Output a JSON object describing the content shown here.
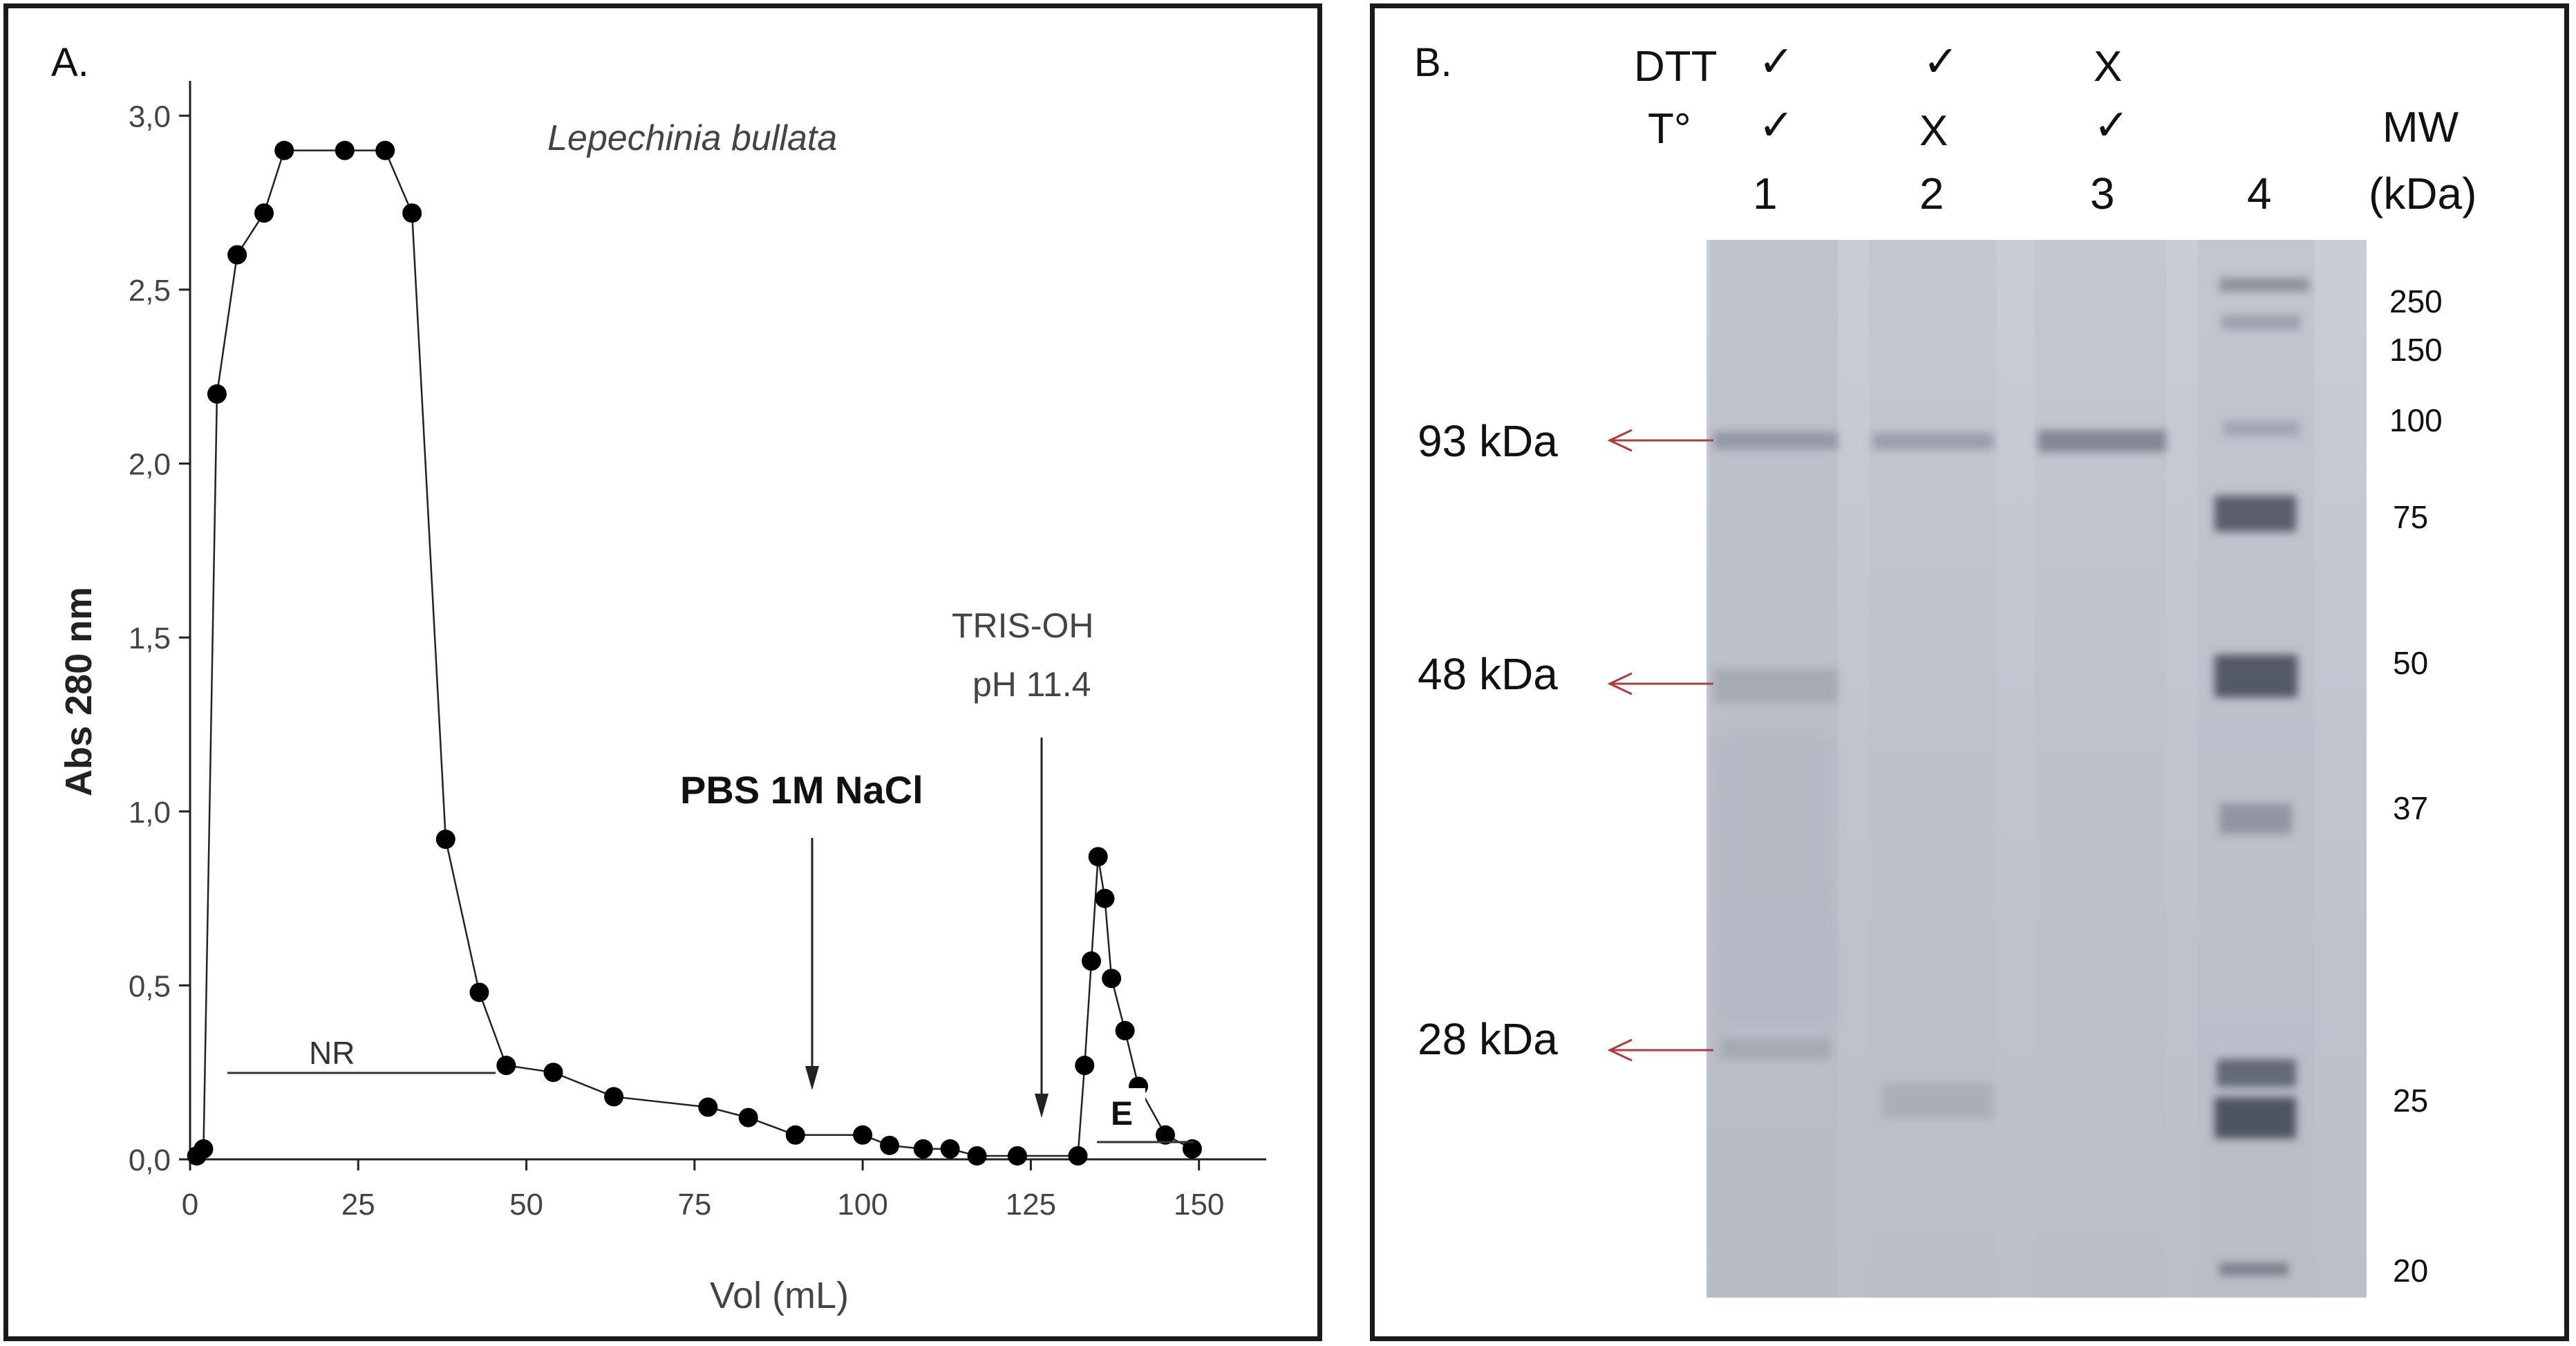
{
  "panel_a": {
    "letter": "A.",
    "chart_data": {
      "type": "line",
      "title": "Lepechinia bullata",
      "xlabel": "Vol (mL)",
      "ylabel": "Abs 280 nm",
      "xlim": [
        0,
        160
      ],
      "ylim": [
        0,
        3.1
      ],
      "x_ticks": [
        "0",
        "25",
        "50",
        "75",
        "100",
        "125",
        "150"
      ],
      "y_ticks": [
        "0,0",
        "0,5",
        "1,0",
        "1,5",
        "2,0",
        "2,5",
        "3,0"
      ],
      "grid": false,
      "series": [
        {
          "x": [
            1,
            2,
            4,
            7,
            11,
            14,
            23,
            29,
            33,
            38,
            43,
            47,
            54,
            63,
            77,
            83,
            90,
            100,
            104,
            109,
            113,
            117,
            123,
            132,
            133,
            134,
            135,
            136,
            137,
            139,
            141,
            145,
            149
          ],
          "y": [
            0.01,
            0.03,
            2.2,
            2.6,
            2.72,
            2.9,
            2.9,
            2.9,
            2.72,
            0.92,
            0.48,
            0.27,
            0.25,
            0.18,
            0.15,
            0.12,
            0.07,
            0.07,
            0.04,
            0.03,
            0.03,
            0.01,
            0.01,
            0.01,
            0.27,
            0.57,
            0.87,
            0.75,
            0.52,
            0.37,
            0.21,
            0.07,
            0.03
          ]
        }
      ],
      "annotations": {
        "nr_label": "NR",
        "pbs_label": "PBS 1M NaCl",
        "tris_line1": "TRIS-OH",
        "tris_line2": "pH 11.4",
        "e_label": "E"
      }
    }
  },
  "panel_b": {
    "letter": "B.",
    "dtt_label": "DTT",
    "temp_label": "T°",
    "dtt_marks": [
      "✓",
      "✓",
      "X"
    ],
    "temp_marks": [
      "✓",
      "X",
      "✓"
    ],
    "lane_numbers": [
      "1",
      "2",
      "3",
      "4"
    ],
    "mw_label": "MW",
    "mw_unit": "(kDa)",
    "band_labels": [
      "93 kDa",
      "48 kDa",
      "28 kDa"
    ],
    "ladder_values": [
      "250",
      "150",
      "100",
      "75",
      "50",
      "37",
      "25",
      "20"
    ]
  }
}
